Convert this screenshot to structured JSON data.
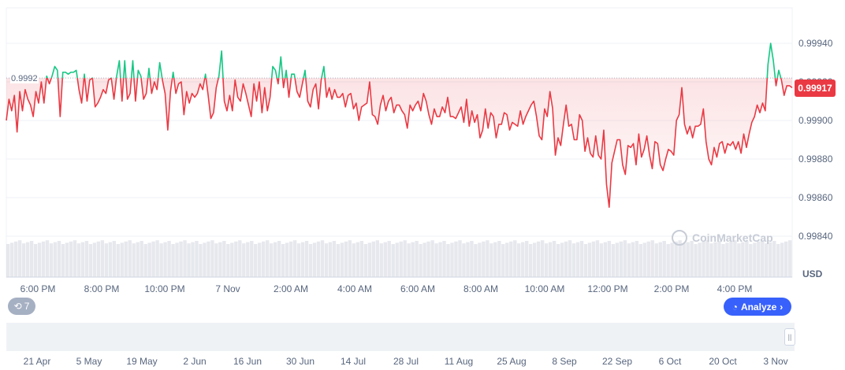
{
  "chart_data": {
    "type": "line",
    "y_ticks": [
      "0.99940",
      "0.99920",
      "0.99900",
      "0.99880",
      "0.99860",
      "0.99840"
    ],
    "ylim": [
      0.9984,
      0.99947
    ],
    "x_ticks": [
      "6:00 PM",
      "8:00 PM",
      "10:00 PM",
      "7 Nov",
      "2:00 AM",
      "4:00 AM",
      "6:00 AM",
      "8:00 AM",
      "10:00 AM",
      "12:00 PM",
      "2:00 PM",
      "4:00 PM"
    ],
    "reference_value": 0.99922,
    "reference_label": "0.9992",
    "current_price_label": "0.99917",
    "currency": "USD",
    "colors": {
      "above": "#16c784",
      "below": "#ea3943",
      "volume": "#d1d6df",
      "price_tag": "#ea3943",
      "accent": "#3861fb"
    },
    "series": [
      {
        "values": [
          0.999,
          0.99911,
          0.99905,
          0.99913,
          0.99894,
          0.99915,
          0.99905,
          0.99916,
          0.99911,
          0.99908,
          0.99902,
          0.99915,
          0.99909,
          0.9992,
          0.99909,
          0.99923,
          0.99919,
          0.99923,
          0.99928,
          0.99926,
          0.99902,
          0.99925,
          0.99925,
          0.99924,
          0.99925,
          0.99925,
          0.99926,
          0.99916,
          0.99909,
          0.99924,
          0.9991,
          0.99921,
          0.99922,
          0.99907,
          0.99909,
          0.99912,
          0.99916,
          0.99914,
          0.99921,
          0.99922,
          0.99911,
          0.99923,
          0.99931,
          0.9991,
          0.99931,
          0.99911,
          0.99914,
          0.99931,
          0.9991,
          0.99926,
          0.99923,
          0.99911,
          0.99914,
          0.99927,
          0.99914,
          0.9992,
          0.99916,
          0.9993,
          0.99921,
          0.99914,
          0.99895,
          0.99915,
          0.99925,
          0.99914,
          0.99919,
          0.9992,
          0.99903,
          0.99915,
          0.99909,
          0.99914,
          0.99912,
          0.99914,
          0.99919,
          0.99916,
          0.99924,
          0.99913,
          0.99901,
          0.99904,
          0.99917,
          0.99923,
          0.99936,
          0.9991,
          0.99905,
          0.99913,
          0.99905,
          0.99921,
          0.99912,
          0.9991,
          0.99919,
          0.99914,
          0.99908,
          0.99902,
          0.99919,
          0.9991,
          0.9992,
          0.99904,
          0.99917,
          0.99905,
          0.99912,
          0.99928,
          0.99926,
          0.99919,
          0.99933,
          0.99917,
          0.99926,
          0.99912,
          0.99924,
          0.99924,
          0.99915,
          0.99912,
          0.99919,
          0.99926,
          0.9991,
          0.99907,
          0.99916,
          0.99919,
          0.99906,
          0.99921,
          0.99928,
          0.99912,
          0.99917,
          0.99911,
          0.99916,
          0.99912,
          0.99912,
          0.99914,
          0.99907,
          0.99913,
          0.99914,
          0.99906,
          0.99909,
          0.999,
          0.99907,
          0.99908,
          0.99909,
          0.9992,
          0.99903,
          0.99902,
          0.99898,
          0.99908,
          0.99913,
          0.99905,
          0.9991,
          0.99912,
          0.99904,
          0.99908,
          0.99908,
          0.99905,
          0.99903,
          0.99896,
          0.99908,
          0.99905,
          0.99908,
          0.9991,
          0.99905,
          0.99914,
          0.9991,
          0.99903,
          0.99898,
          0.99906,
          0.99902,
          0.99902,
          0.99907,
          0.99904,
          0.99912,
          0.99902,
          0.99902,
          0.99901,
          0.99904,
          0.99907,
          0.99899,
          0.99911,
          0.99897,
          0.99905,
          0.99899,
          0.99903,
          0.99891,
          0.99895,
          0.99906,
          0.99896,
          0.99904,
          0.99902,
          0.99891,
          0.99898,
          0.99898,
          0.99904,
          0.99903,
          0.99895,
          0.99899,
          0.99898,
          0.99897,
          0.99905,
          0.99898,
          0.99902,
          0.99905,
          0.99908,
          0.9991,
          0.99902,
          0.99892,
          0.9989,
          0.99906,
          0.99902,
          0.99915,
          0.99906,
          0.99882,
          0.99891,
          0.99887,
          0.99898,
          0.99908,
          0.99897,
          0.99898,
          0.9989,
          0.9989,
          0.99903,
          0.999,
          0.99884,
          0.99891,
          0.99883,
          0.99881,
          0.99892,
          0.99882,
          0.9988,
          0.99895,
          0.99867,
          0.99855,
          0.99878,
          0.99884,
          0.9989,
          0.9989,
          0.99877,
          0.99872,
          0.99887,
          0.99886,
          0.99888,
          0.99877,
          0.99893,
          0.99881,
          0.99885,
          0.99892,
          0.99882,
          0.99875,
          0.99889,
          0.99888,
          0.99877,
          0.99874,
          0.9988,
          0.99885,
          0.99884,
          0.99882,
          0.999,
          0.99903,
          0.99917,
          0.99898,
          0.99893,
          0.99897,
          0.99891,
          0.99897,
          0.99897,
          0.99898,
          0.99906,
          0.99889,
          0.9988,
          0.99877,
          0.99886,
          0.99881,
          0.99888,
          0.99889,
          0.99883,
          0.99888,
          0.99887,
          0.99889,
          0.99885,
          0.99889,
          0.99883,
          0.99893,
          0.99886,
          0.99893,
          0.99899,
          0.99902,
          0.99908,
          0.99904,
          0.99909,
          0.99905,
          0.99929,
          0.9994,
          0.99931,
          0.99918,
          0.99926,
          0.99921,
          0.99913,
          0.99918,
          0.99918,
          0.99917
        ]
      }
    ]
  },
  "navigator": {
    "dates": [
      "21 Apr",
      "5 May",
      "19 May",
      "2 Jun",
      "16 Jun",
      "30 Jun",
      "14 Jul",
      "28 Jul",
      "11 Aug",
      "25 Aug",
      "8 Sep",
      "22 Sep",
      "6 Oct",
      "20 Oct",
      "3 Nov"
    ],
    "handle_glyph": "||"
  },
  "controls": {
    "history_count": "7",
    "analyze_label": "Analyze",
    "analyze_chevron": "›"
  },
  "watermark": {
    "text": "CoinMarketCap"
  }
}
